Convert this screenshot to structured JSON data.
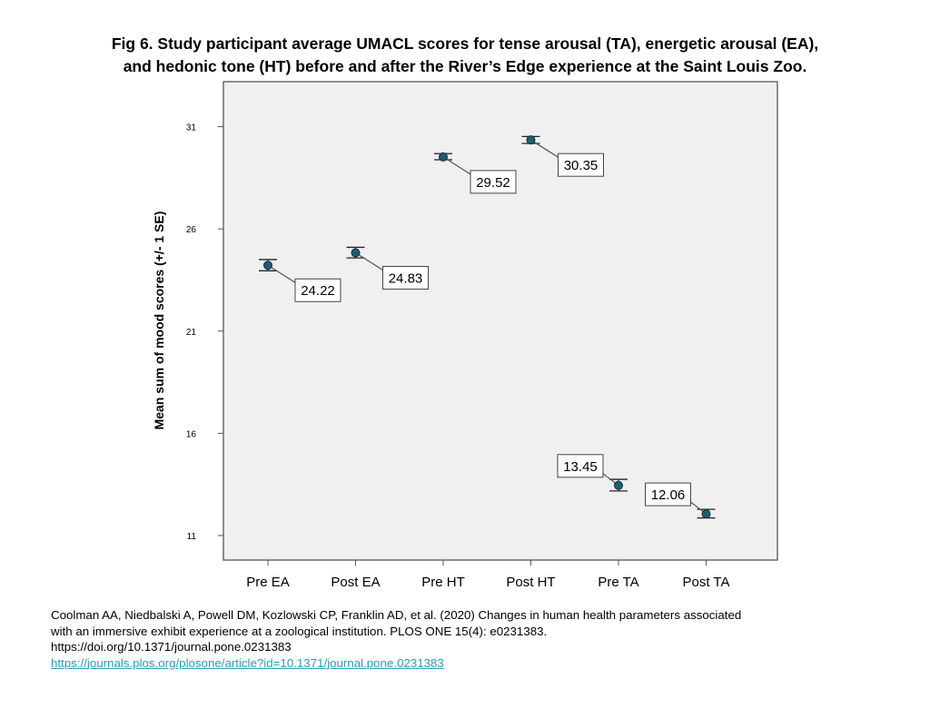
{
  "figure": {
    "title_line1": "Fig 6. Study participant average UMACL scores for tense arousal (TA), energetic arousal (EA),",
    "title_line2": "and hedonic tone (HT) before and after the River’s Edge experience at the Saint Louis Zoo."
  },
  "chart_data": {
    "type": "scatter",
    "title": "Fig 6. Study participant average UMACL scores for tense arousal (TA), energetic arousal (EA), and hedonic tone (HT) before and after the River’s Edge experience at the Saint Louis Zoo.",
    "xlabel": "",
    "ylabel": "Mean sum of mood scores (+/- 1 SE)",
    "categories": [
      "Pre EA",
      "Post EA",
      "Pre HT",
      "Post HT",
      "Pre TA",
      "Post TA"
    ],
    "values": [
      24.22,
      24.83,
      29.52,
      30.35,
      13.45,
      12.06
    ],
    "data_labels": [
      "24.22",
      "24.83",
      "29.52",
      "30.35",
      "13.45",
      "12.06"
    ],
    "error_low": [
      23.95,
      24.58,
      29.38,
      30.18,
      13.18,
      11.86
    ],
    "error_high": [
      24.5,
      25.1,
      29.68,
      30.52,
      13.75,
      12.28
    ],
    "label_side": [
      "below-right",
      "below-right",
      "below-right",
      "below-right",
      "above-left",
      "above-left"
    ],
    "ylim": [
      9.8,
      33.2
    ],
    "yticks": [
      11,
      16,
      21,
      26,
      31
    ],
    "ytick_labels": [
      "11",
      "16",
      "21",
      "26",
      "31"
    ],
    "grid": false,
    "legend": "none",
    "colors": {
      "marker": "#1f5d73",
      "plot_bg": "#f0f0f0",
      "frame": "#555555",
      "callout_line": "#555555"
    }
  },
  "citation": {
    "line1": "Coolman AA, Niedbalski A, Powell DM, Kozlowski CP, Franklin AD, et al. (2020) Changes in human health parameters associated",
    "line2": "with an immersive exhibit experience at a zoological institution.  PLOS ONE 15(4): e0231383.",
    "line3": "https://doi.org/10.1371/journal.pone.0231383",
    "link_text": "https://journals.plos.org/plosone/article?id=10.1371/journal.pone.0231383"
  }
}
